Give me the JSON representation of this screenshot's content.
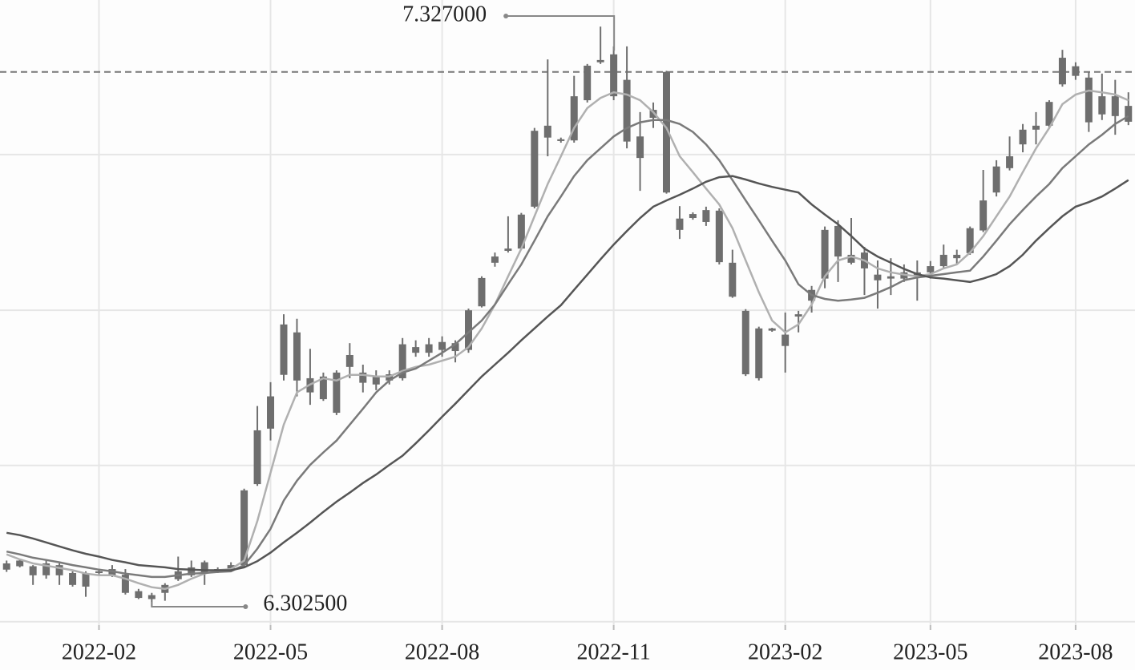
{
  "chart_data": {
    "type": "candlestick",
    "categories": [
      null,
      null,
      null,
      null,
      null,
      null,
      null,
      "2022-02",
      null,
      null,
      null,
      null,
      null,
      null,
      null,
      null,
      null,
      null,
      null,
      null,
      "2022-05",
      null,
      null,
      null,
      null,
      null,
      null,
      null,
      null,
      null,
      null,
      null,
      null,
      "2022-08",
      null,
      null,
      null,
      null,
      null,
      null,
      null,
      null,
      null,
      null,
      null,
      null,
      "2022-11",
      null,
      null,
      null,
      null,
      null,
      null,
      null,
      null,
      null,
      null,
      null,
      null,
      "2023-02",
      null,
      null,
      null,
      null,
      null,
      null,
      null,
      null,
      null,
      null,
      "2023-05",
      null,
      null,
      null,
      null,
      null,
      null,
      null,
      null,
      null,
      null,
      "2023-08",
      null,
      null,
      null,
      null
    ],
    "ohlc": [
      [
        6.379,
        6.384,
        6.364,
        6.368
      ],
      [
        6.384,
        6.386,
        6.372,
        6.374
      ],
      [
        6.374,
        6.376,
        6.341,
        6.358
      ],
      [
        6.379,
        6.386,
        6.352,
        6.358
      ],
      [
        6.376,
        6.379,
        6.341,
        6.358
      ],
      [
        6.362,
        6.365,
        6.338,
        6.341
      ],
      [
        6.362,
        6.365,
        6.32,
        6.338
      ],
      [
        6.365,
        6.369,
        6.359,
        6.362
      ],
      [
        6.369,
        6.376,
        6.355,
        6.358
      ],
      [
        6.359,
        6.369,
        6.324,
        6.327
      ],
      [
        6.33,
        6.334,
        6.316,
        6.318
      ],
      [
        6.323,
        6.327,
        6.3025,
        6.316
      ],
      [
        6.341,
        6.344,
        6.313,
        6.327
      ],
      [
        6.365,
        6.391,
        6.348,
        6.351
      ],
      [
        6.372,
        6.384,
        6.355,
        6.358
      ],
      [
        6.381,
        6.384,
        6.341,
        6.362
      ],
      [
        6.369,
        6.372,
        6.362,
        6.365
      ],
      [
        6.376,
        6.381,
        6.364,
        6.367
      ],
      [
        6.508,
        6.511,
        6.374,
        6.376
      ],
      [
        6.614,
        6.657,
        6.516,
        6.519
      ],
      [
        6.674,
        6.699,
        6.596,
        6.617
      ],
      [
        6.801,
        6.819,
        6.702,
        6.712
      ],
      [
        6.787,
        6.811,
        6.674,
        6.702
      ],
      [
        6.706,
        6.758,
        6.659,
        6.681
      ],
      [
        6.709,
        6.716,
        6.666,
        6.669
      ],
      [
        6.716,
        6.72,
        6.641,
        6.645
      ],
      [
        6.747,
        6.768,
        6.706,
        6.726
      ],
      [
        6.716,
        6.73,
        6.681,
        6.698
      ],
      [
        6.709,
        6.72,
        6.685,
        6.695
      ],
      [
        6.713,
        6.72,
        6.695,
        6.702
      ],
      [
        6.766,
        6.777,
        6.702,
        6.706
      ],
      [
        6.761,
        6.773,
        6.744,
        6.751
      ],
      [
        6.766,
        6.777,
        6.744,
        6.751
      ],
      [
        6.77,
        6.78,
        6.744,
        6.756
      ],
      [
        6.768,
        6.773,
        6.734,
        6.754
      ],
      [
        6.826,
        6.829,
        6.751,
        6.756
      ],
      [
        6.883,
        6.886,
        6.831,
        6.833
      ],
      [
        6.921,
        6.928,
        6.903,
        6.91
      ],
      [
        6.935,
        6.992,
        6.928,
        6.931
      ],
      [
        6.995,
        6.998,
        6.933,
        6.935
      ],
      [
        7.143,
        7.148,
        7.006,
        7.009
      ],
      [
        7.152,
        7.269,
        7.098,
        7.131
      ],
      [
        7.128,
        7.131,
        7.122,
        7.125
      ],
      [
        7.204,
        7.24,
        7.122,
        7.126
      ],
      [
        7.258,
        7.261,
        7.193,
        7.197
      ],
      [
        7.268,
        7.327,
        7.261,
        7.264
      ],
      [
        7.278,
        7.292,
        7.197,
        7.204
      ],
      [
        7.233,
        7.292,
        7.112,
        7.124
      ],
      [
        7.133,
        7.176,
        7.037,
        7.095
      ],
      [
        7.18,
        7.193,
        7.148,
        7.166
      ],
      [
        7.247,
        7.249,
        7.032,
        7.034
      ],
      [
        6.988,
        7.01,
        6.952,
        6.968
      ],
      [
        6.996,
        6.999,
        6.986,
        6.989
      ],
      [
        7.003,
        7.009,
        6.975,
        6.982
      ],
      [
        7.002,
        7.006,
        6.907,
        6.911
      ],
      [
        6.91,
        6.933,
        6.848,
        6.85
      ],
      [
        6.825,
        6.828,
        6.71,
        6.713
      ],
      [
        6.794,
        6.797,
        6.702,
        6.706
      ],
      [
        6.794,
        6.795,
        6.788,
        6.79
      ],
      [
        6.783,
        6.822,
        6.716,
        6.763
      ],
      [
        6.819,
        6.825,
        6.787,
        6.815
      ],
      [
        6.862,
        6.869,
        6.822,
        6.843
      ],
      [
        6.968,
        6.974,
        6.865,
        6.882
      ],
      [
        6.975,
        6.985,
        6.876,
        6.921
      ],
      [
        6.924,
        6.989,
        6.907,
        6.91
      ],
      [
        6.928,
        6.938,
        6.853,
        6.9
      ],
      [
        6.889,
        6.914,
        6.829,
        6.879
      ],
      [
        6.886,
        6.918,
        6.853,
        6.882
      ],
      [
        6.893,
        6.907,
        6.876,
        6.882
      ],
      [
        6.893,
        6.914,
        6.843,
        6.886
      ],
      [
        6.904,
        6.913,
        6.882,
        6.893
      ],
      [
        6.924,
        6.942,
        6.9,
        6.904
      ],
      [
        6.924,
        6.933,
        6.907,
        6.918
      ],
      [
        6.971,
        6.974,
        6.924,
        6.927
      ],
      [
        7.02,
        7.074,
        6.964,
        6.967
      ],
      [
        7.08,
        7.091,
        7.027,
        7.034
      ],
      [
        7.098,
        7.133,
        7.073,
        7.077
      ],
      [
        7.145,
        7.155,
        7.105,
        7.119
      ],
      [
        7.152,
        7.176,
        7.119,
        7.145
      ],
      [
        7.194,
        7.197,
        7.148,
        7.152
      ],
      [
        7.272,
        7.286,
        7.221,
        7.225
      ],
      [
        7.257,
        7.264,
        7.233,
        7.24
      ],
      [
        7.237,
        7.247,
        7.141,
        7.158
      ],
      [
        7.204,
        7.244,
        7.162,
        7.172
      ],
      [
        7.204,
        7.233,
        7.136,
        7.169
      ],
      [
        7.187,
        7.211,
        7.153,
        7.159
      ]
    ],
    "candle_color": "#6e6e6e",
    "lines": [
      {
        "color": "#b0b0b0",
        "values": [
          6.395,
          6.386,
          6.379,
          6.375,
          6.371,
          6.367,
          6.361,
          6.358,
          6.358,
          6.352,
          6.344,
          6.337,
          6.334,
          6.341,
          6.352,
          6.361,
          6.367,
          6.369,
          6.384,
          6.454,
          6.539,
          6.624,
          6.681,
          6.695,
          6.706,
          6.702,
          6.712,
          6.712,
          6.709,
          6.709,
          6.719,
          6.726,
          6.73,
          6.737,
          6.744,
          6.761,
          6.794,
          6.836,
          6.886,
          6.935,
          6.992,
          7.049,
          7.098,
          7.148,
          7.183,
          7.201,
          7.211,
          7.207,
          7.197,
          7.176,
          7.148,
          7.098,
          7.07,
          7.041,
          7.013,
          6.971,
          6.914,
          6.858,
          6.808,
          6.787,
          6.801,
          6.836,
          6.886,
          6.914,
          6.921,
          6.914,
          6.9,
          6.893,
          6.889,
          6.886,
          6.89,
          6.9,
          6.907,
          6.928,
          6.957,
          6.992,
          7.027,
          7.07,
          7.112,
          7.148,
          7.19,
          7.207,
          7.214,
          7.211,
          7.207,
          7.197
        ]
      },
      {
        "color": "#7a7a7a",
        "values": [
          6.4,
          6.395,
          6.389,
          6.385,
          6.381,
          6.376,
          6.372,
          6.368,
          6.365,
          6.361,
          6.358,
          6.355,
          6.355,
          6.358,
          6.361,
          6.362,
          6.364,
          6.365,
          6.376,
          6.405,
          6.44,
          6.49,
          6.525,
          6.553,
          6.575,
          6.596,
          6.624,
          6.652,
          6.681,
          6.702,
          6.716,
          6.723,
          6.737,
          6.751,
          6.766,
          6.787,
          6.808,
          6.836,
          6.872,
          6.907,
          6.949,
          6.992,
          7.027,
          7.063,
          7.091,
          7.112,
          7.133,
          7.148,
          7.158,
          7.162,
          7.162,
          7.155,
          7.141,
          7.119,
          7.091,
          7.056,
          7.02,
          6.985,
          6.949,
          6.914,
          6.872,
          6.853,
          6.846,
          6.843,
          6.845,
          6.848,
          6.857,
          6.867,
          6.879,
          6.884,
          6.887,
          6.89,
          6.893,
          6.896,
          6.921,
          6.949,
          6.978,
          7.003,
          7.027,
          7.049,
          7.077,
          7.098,
          7.119,
          7.136,
          7.155,
          7.169
        ]
      },
      {
        "color": "#555555",
        "values": [
          6.433,
          6.429,
          6.423,
          6.416,
          6.409,
          6.402,
          6.396,
          6.391,
          6.385,
          6.381,
          6.376,
          6.374,
          6.372,
          6.369,
          6.368,
          6.367,
          6.367,
          6.367,
          6.372,
          6.383,
          6.398,
          6.416,
          6.433,
          6.451,
          6.47,
          6.488,
          6.504,
          6.521,
          6.536,
          6.553,
          6.569,
          6.591,
          6.614,
          6.638,
          6.661,
          6.685,
          6.709,
          6.73,
          6.751,
          6.773,
          6.794,
          6.815,
          6.835,
          6.862,
          6.889,
          6.916,
          6.942,
          6.966,
          6.989,
          7.009,
          7.02,
          7.03,
          7.041,
          7.053,
          7.061,
          7.063,
          7.057,
          7.05,
          7.044,
          7.039,
          7.034,
          7.013,
          6.995,
          6.978,
          6.957,
          6.935,
          6.921,
          6.91,
          6.899,
          6.89,
          6.884,
          6.882,
          6.879,
          6.876,
          6.882,
          6.89,
          6.904,
          6.924,
          6.949,
          6.971,
          6.992,
          7.009,
          7.017,
          7.027,
          7.041,
          7.056
        ]
      }
    ],
    "hline": {
      "value": 7.247,
      "color": "#777777"
    },
    "annotations": [
      {
        "label": "7.327000",
        "value": 7.327,
        "at": "high"
      },
      {
        "label": "6.302500",
        "value": 6.3025,
        "at": "low"
      }
    ],
    "ylim": [
      6.27,
      7.374
    ],
    "yticks": [
      6.276,
      6.552,
      6.826,
      7.101
    ],
    "grid": true
  }
}
